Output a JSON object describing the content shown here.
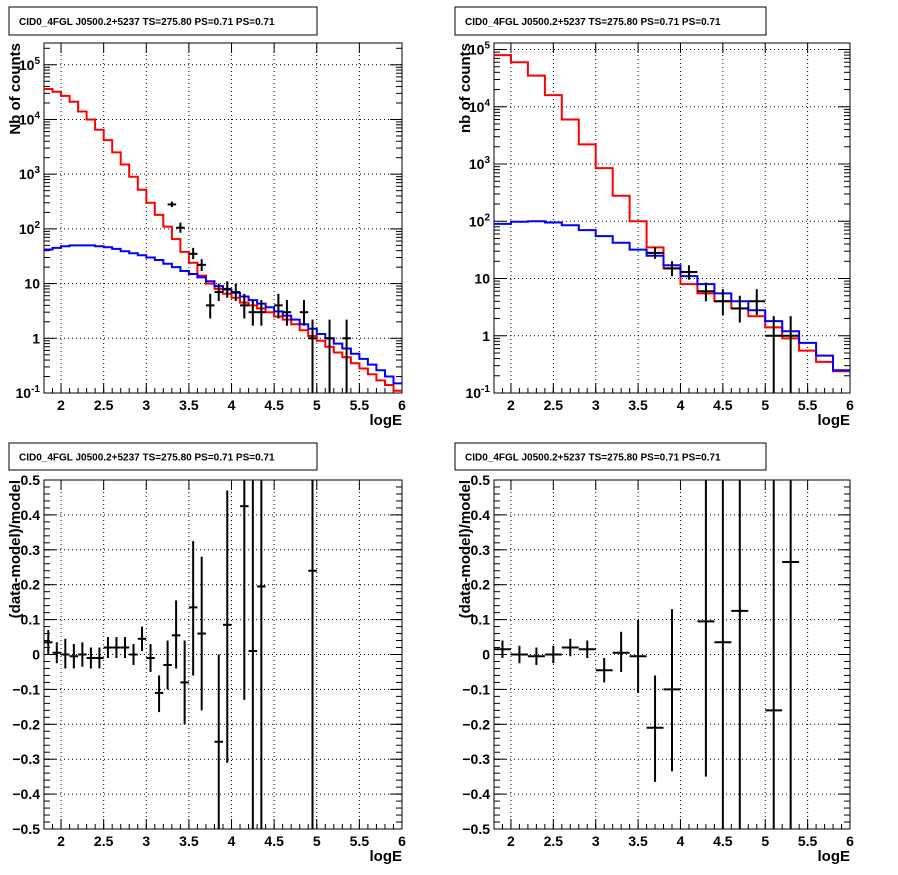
{
  "chart_data": [
    {
      "id": "counts_left",
      "type": "line",
      "title": "CID0_4FGL J0500.2+5237 TS=275.80 PS=0.71 PS=0.71",
      "xlabel": "logE",
      "ylabel": "Nb of counts",
      "xlim": [
        1.8,
        6.0
      ],
      "ylim": [
        0.1,
        250000
      ],
      "yscale": "log",
      "grid": true,
      "x_ticks": [
        2,
        2.5,
        3,
        3.5,
        4,
        4.5,
        5,
        5.5,
        6
      ],
      "x_tick_labels": [
        "2",
        "2.5",
        "3",
        "3.5",
        "4",
        "4.5",
        "5",
        "5.5",
        "6"
      ],
      "y_ticks": [
        0.1,
        1,
        10,
        100,
        1000,
        10000,
        100000
      ],
      "y_tick_labels": [
        "10^-1",
        "1",
        "10",
        "10^2",
        "10^3",
        "10^4",
        "10^5"
      ],
      "bin_edges": [
        1.8,
        1.9,
        2.0,
        2.1,
        2.2,
        2.3,
        2.4,
        2.5,
        2.6,
        2.7,
        2.8,
        2.9,
        3.0,
        3.1,
        3.2,
        3.3,
        3.4,
        3.5,
        3.6,
        3.7,
        3.8,
        3.9,
        4.0,
        4.1,
        4.2,
        4.3,
        4.4,
        4.5,
        4.6,
        4.7,
        4.8,
        4.9,
        5.0,
        5.1,
        5.2,
        5.3,
        5.4,
        5.5,
        5.6,
        5.7,
        5.8,
        5.9,
        6.0
      ],
      "series": [
        {
          "color": "#ff0000",
          "style": "step",
          "values": [
            36000,
            32000,
            27000,
            21000,
            14000,
            10000,
            6500,
            4200,
            2500,
            1500,
            900,
            520,
            300,
            180,
            110,
            65,
            38,
            24,
            14,
            10,
            8,
            6.5,
            5.5,
            4.5,
            4,
            3.5,
            3,
            2.5,
            2.2,
            1.8,
            1.4,
            1.1,
            0.9,
            0.7,
            0.55,
            0.45,
            0.35,
            0.28,
            0.22,
            0.17,
            0.14,
            0.11
          ]
        },
        {
          "color": "#0000ff",
          "style": "step",
          "values": [
            42,
            45,
            48,
            50,
            50,
            50,
            48,
            46,
            43,
            39,
            36,
            33,
            30,
            27,
            23,
            20,
            17,
            15,
            13,
            11,
            9,
            7.8,
            6.8,
            5.8,
            5,
            4.3,
            3.7,
            3.1,
            2.6,
            2.2,
            1.8,
            1.5,
            1.2,
            1,
            0.8,
            0.65,
            0.52,
            0.42,
            0.33,
            0.26,
            0.2,
            0.15
          ]
        }
      ],
      "points": [
        {
          "x": 3.3,
          "y": 280,
          "xerr": 0.05,
          "ylo": 250,
          "yhi": 315
        },
        {
          "x": 3.4,
          "y": 105,
          "xerr": 0.05,
          "ylo": 85,
          "yhi": 130
        },
        {
          "x": 3.55,
          "y": 35,
          "xerr": 0.05,
          "ylo": 28,
          "yhi": 45
        },
        {
          "x": 3.65,
          "y": 22,
          "xerr": 0.05,
          "ylo": 17,
          "yhi": 28
        },
        {
          "x": 3.75,
          "y": 4,
          "xerr": 0.05,
          "ylo": 2.3,
          "yhi": 6.5
        },
        {
          "x": 3.85,
          "y": 7,
          "xerr": 0.05,
          "ylo": 4.8,
          "yhi": 10
        },
        {
          "x": 3.95,
          "y": 8,
          "xerr": 0.05,
          "ylo": 5.5,
          "yhi": 11
        },
        {
          "x": 4.05,
          "y": 7,
          "xerr": 0.05,
          "ylo": 4.8,
          "yhi": 10
        },
        {
          "x": 4.15,
          "y": 4,
          "xerr": 0.05,
          "ylo": 2.3,
          "yhi": 6.5
        },
        {
          "x": 4.25,
          "y": 3,
          "xerr": 0.05,
          "ylo": 1.7,
          "yhi": 5
        },
        {
          "x": 4.35,
          "y": 3,
          "xerr": 0.05,
          "ylo": 1.7,
          "yhi": 5
        },
        {
          "x": 4.55,
          "y": 4,
          "xerr": 0.05,
          "ylo": 2.3,
          "yhi": 6.5
        },
        {
          "x": 4.65,
          "y": 3,
          "xerr": 0.05,
          "ylo": 1.7,
          "yhi": 5
        },
        {
          "x": 4.85,
          "y": 3,
          "xerr": 0.05,
          "ylo": 1.7,
          "yhi": 5
        },
        {
          "x": 4.95,
          "y": 1,
          "xerr": 0.05,
          "ylo": 0.1,
          "yhi": 2.2
        },
        {
          "x": 5.15,
          "y": 1,
          "xerr": 0.05,
          "ylo": 0.1,
          "yhi": 2.2
        },
        {
          "x": 5.35,
          "y": 1,
          "xerr": 0.05,
          "ylo": 0.1,
          "yhi": 2.2
        }
      ]
    },
    {
      "id": "counts_right",
      "type": "line",
      "title": "CID0_4FGL J0500.2+5237 TS=275.80 PS=0.71 PS=0.71",
      "xlabel": "logE",
      "ylabel": "nb of counts",
      "xlim": [
        1.8,
        6.0
      ],
      "ylim": [
        0.1,
        130000
      ],
      "yscale": "log",
      "grid": true,
      "x_ticks": [
        2,
        2.5,
        3,
        3.5,
        4,
        4.5,
        5,
        5.5,
        6
      ],
      "x_tick_labels": [
        "2",
        "2.5",
        "3",
        "3.5",
        "4",
        "4.5",
        "5",
        "5.5",
        "6"
      ],
      "y_ticks": [
        0.1,
        1,
        10,
        100,
        1000,
        10000,
        100000
      ],
      "y_tick_labels": [
        "10^-1",
        "1",
        "10",
        "10^2",
        "10^3",
        "10^4",
        "10^5"
      ],
      "bin_edges": [
        1.8,
        2.0,
        2.2,
        2.4,
        2.6,
        2.8,
        3.0,
        3.2,
        3.4,
        3.6,
        3.8,
        4.0,
        4.2,
        4.4,
        4.6,
        4.8,
        5.0,
        5.2,
        5.4,
        5.6,
        5.8,
        6.0
      ],
      "series": [
        {
          "color": "#ff0000",
          "style": "step",
          "values": [
            80000,
            60000,
            35000,
            16000,
            6000,
            2200,
            850,
            280,
            100,
            35,
            15,
            8,
            5.5,
            4,
            3,
            2.2,
            1.4,
            0.9,
            0.55,
            0.35,
            0.24
          ]
        },
        {
          "color": "#0000ff",
          "style": "step",
          "values": [
            90,
            98,
            100,
            95,
            85,
            70,
            55,
            42,
            32,
            25,
            17,
            11,
            8,
            5.5,
            4,
            2.8,
            1.8,
            1.2,
            0.75,
            0.45,
            0.25
          ]
        }
      ],
      "points": [
        {
          "x": 3.7,
          "y": 28,
          "xerr": 0.1,
          "ylo": 22,
          "yhi": 35
        },
        {
          "x": 3.9,
          "y": 15,
          "xerr": 0.1,
          "ylo": 11,
          "yhi": 20
        },
        {
          "x": 4.1,
          "y": 13,
          "xerr": 0.1,
          "ylo": 9.5,
          "yhi": 17
        },
        {
          "x": 4.3,
          "y": 6,
          "xerr": 0.1,
          "ylo": 4,
          "yhi": 8.5
        },
        {
          "x": 4.5,
          "y": 4,
          "xerr": 0.1,
          "ylo": 2.3,
          "yhi": 6.5
        },
        {
          "x": 4.7,
          "y": 3,
          "xerr": 0.1,
          "ylo": 1.7,
          "yhi": 5
        },
        {
          "x": 4.9,
          "y": 4,
          "xerr": 0.1,
          "ylo": 2.3,
          "yhi": 6.5
        },
        {
          "x": 5.1,
          "y": 1,
          "xerr": 0.1,
          "ylo": 0.1,
          "yhi": 2.2
        },
        {
          "x": 5.3,
          "y": 1,
          "xerr": 0.1,
          "ylo": 0.1,
          "yhi": 2.2
        }
      ]
    },
    {
      "id": "residuals_left",
      "type": "scatter",
      "title": "CID0_4FGL J0500.2+5237 TS=275.80 PS=0.71 PS=0.71",
      "xlabel": "logE",
      "ylabel": "(data-model)/model",
      "xlim": [
        1.8,
        6.0
      ],
      "ylim": [
        -0.5,
        0.5
      ],
      "yscale": "linear",
      "grid": true,
      "x_ticks": [
        2,
        2.5,
        3,
        3.5,
        4,
        4.5,
        5,
        5.5,
        6
      ],
      "x_tick_labels": [
        "2",
        "2.5",
        "3",
        "3.5",
        "4",
        "4.5",
        "5",
        "5.5",
        "6"
      ],
      "y_ticks": [
        -0.5,
        -0.4,
        -0.3,
        -0.2,
        -0.1,
        0,
        0.1,
        0.2,
        0.3,
        0.4,
        0.5
      ],
      "y_tick_labels": [
        "−0.5",
        "−0.4",
        "−0.3",
        "−0.2",
        "−0.1",
        "0",
        "0.1",
        "0.2",
        "0.3",
        "0.4",
        "0.5"
      ],
      "points": [
        {
          "x": 1.85,
          "y": 0.035,
          "xerr": 0.05,
          "ylo": 0.0,
          "yhi": 0.07
        },
        {
          "x": 1.95,
          "y": 0.005,
          "xerr": 0.05,
          "ylo": -0.025,
          "yhi": 0.035
        },
        {
          "x": 2.05,
          "y": 0.0,
          "xerr": 0.05,
          "ylo": -0.04,
          "yhi": 0.045
        },
        {
          "x": 2.15,
          "y": -0.005,
          "xerr": 0.05,
          "ylo": -0.04,
          "yhi": 0.03
        },
        {
          "x": 2.25,
          "y": 0.0,
          "xerr": 0.05,
          "ylo": -0.035,
          "yhi": 0.035
        },
        {
          "x": 2.35,
          "y": -0.01,
          "xerr": 0.05,
          "ylo": -0.04,
          "yhi": 0.02
        },
        {
          "x": 2.45,
          "y": -0.01,
          "xerr": 0.05,
          "ylo": -0.04,
          "yhi": 0.02
        },
        {
          "x": 2.55,
          "y": 0.02,
          "xerr": 0.05,
          "ylo": -0.01,
          "yhi": 0.05
        },
        {
          "x": 2.65,
          "y": 0.02,
          "xerr": 0.05,
          "ylo": -0.01,
          "yhi": 0.05
        },
        {
          "x": 2.75,
          "y": 0.02,
          "xerr": 0.05,
          "ylo": -0.01,
          "yhi": 0.05
        },
        {
          "x": 2.85,
          "y": 0.0,
          "xerr": 0.05,
          "ylo": -0.03,
          "yhi": 0.03
        },
        {
          "x": 2.95,
          "y": 0.045,
          "xerr": 0.05,
          "ylo": 0.01,
          "yhi": 0.08
        },
        {
          "x": 3.05,
          "y": -0.01,
          "xerr": 0.05,
          "ylo": -0.05,
          "yhi": 0.03
        },
        {
          "x": 3.15,
          "y": -0.11,
          "xerr": 0.05,
          "ylo": -0.165,
          "yhi": -0.06
        },
        {
          "x": 3.25,
          "y": -0.03,
          "xerr": 0.05,
          "ylo": -0.1,
          "yhi": 0.04
        },
        {
          "x": 3.35,
          "y": 0.055,
          "xerr": 0.05,
          "ylo": -0.04,
          "yhi": 0.155
        },
        {
          "x": 3.45,
          "y": -0.08,
          "xerr": 0.05,
          "ylo": -0.2,
          "yhi": 0.04
        },
        {
          "x": 3.55,
          "y": 0.135,
          "xerr": 0.05,
          "ylo": -0.06,
          "yhi": 0.325
        },
        {
          "x": 3.65,
          "y": 0.06,
          "xerr": 0.05,
          "ylo": -0.16,
          "yhi": 0.28
        },
        {
          "x": 3.85,
          "y": -0.25,
          "xerr": 0.05,
          "ylo": -0.5,
          "yhi": 0.0
        },
        {
          "x": 3.95,
          "y": 0.085,
          "xerr": 0.05,
          "ylo": -0.31,
          "yhi": 0.47
        },
        {
          "x": 4.15,
          "y": 0.425,
          "xerr": 0.05,
          "ylo": -0.13,
          "yhi": 0.5
        },
        {
          "x": 4.25,
          "y": 0.01,
          "xerr": 0.05,
          "ylo": -0.5,
          "yhi": 0.5
        },
        {
          "x": 4.35,
          "y": 0.195,
          "xerr": 0.05,
          "ylo": -0.5,
          "yhi": 0.5
        },
        {
          "x": 4.95,
          "y": 0.24,
          "xerr": 0.05,
          "ylo": -0.5,
          "yhi": 0.5
        }
      ]
    },
    {
      "id": "residuals_right",
      "type": "scatter",
      "title": "CID0_4FGL J0500.2+5237 TS=275.80 PS=0.71 PS=0.71",
      "xlabel": "logE",
      "ylabel": "(data-model)/model",
      "xlim": [
        1.8,
        6.0
      ],
      "ylim": [
        -0.5,
        0.5
      ],
      "yscale": "linear",
      "grid": true,
      "x_ticks": [
        2,
        2.5,
        3,
        3.5,
        4,
        4.5,
        5,
        5.5,
        6
      ],
      "x_tick_labels": [
        "2",
        "2.5",
        "3",
        "3.5",
        "4",
        "4.5",
        "5",
        "5.5",
        "6"
      ],
      "y_ticks": [
        -0.5,
        -0.4,
        -0.3,
        -0.2,
        -0.1,
        0,
        0.1,
        0.2,
        0.3,
        0.4,
        0.5
      ],
      "y_tick_labels": [
        "−0.5",
        "−0.4",
        "−0.3",
        "−0.2",
        "−0.1",
        "0",
        "0.1",
        "0.2",
        "0.3",
        "0.4",
        "0.5"
      ],
      "points": [
        {
          "x": 1.9,
          "y": 0.015,
          "xerr": 0.1,
          "ylo": -0.01,
          "yhi": 0.04
        },
        {
          "x": 2.1,
          "y": 0.0,
          "xerr": 0.1,
          "ylo": -0.025,
          "yhi": 0.025
        },
        {
          "x": 2.3,
          "y": -0.005,
          "xerr": 0.1,
          "ylo": -0.03,
          "yhi": 0.02
        },
        {
          "x": 2.5,
          "y": 0.0,
          "xerr": 0.1,
          "ylo": -0.025,
          "yhi": 0.025
        },
        {
          "x": 2.7,
          "y": 0.02,
          "xerr": 0.1,
          "ylo": -0.005,
          "yhi": 0.045
        },
        {
          "x": 2.9,
          "y": 0.015,
          "xerr": 0.1,
          "ylo": -0.01,
          "yhi": 0.04
        },
        {
          "x": 3.1,
          "y": -0.045,
          "xerr": 0.1,
          "ylo": -0.08,
          "yhi": -0.01
        },
        {
          "x": 3.3,
          "y": 0.005,
          "xerr": 0.1,
          "ylo": -0.05,
          "yhi": 0.065
        },
        {
          "x": 3.5,
          "y": -0.005,
          "xerr": 0.1,
          "ylo": -0.11,
          "yhi": 0.1
        },
        {
          "x": 3.7,
          "y": -0.21,
          "xerr": 0.1,
          "ylo": -0.365,
          "yhi": -0.06
        },
        {
          "x": 3.9,
          "y": -0.1,
          "xerr": 0.1,
          "ylo": -0.335,
          "yhi": 0.13
        },
        {
          "x": 4.3,
          "y": 0.095,
          "xerr": 0.1,
          "ylo": -0.35,
          "yhi": 0.5
        },
        {
          "x": 4.5,
          "y": 0.035,
          "xerr": 0.1,
          "ylo": -0.5,
          "yhi": 0.5
        },
        {
          "x": 4.7,
          "y": 0.125,
          "xerr": 0.1,
          "ylo": -0.5,
          "yhi": 0.5
        },
        {
          "x": 5.1,
          "y": -0.16,
          "xerr": 0.1,
          "ylo": -0.5,
          "yhi": 0.5
        },
        {
          "x": 5.3,
          "y": 0.265,
          "xerr": 0.1,
          "ylo": -0.5,
          "yhi": 0.5
        }
      ]
    }
  ]
}
